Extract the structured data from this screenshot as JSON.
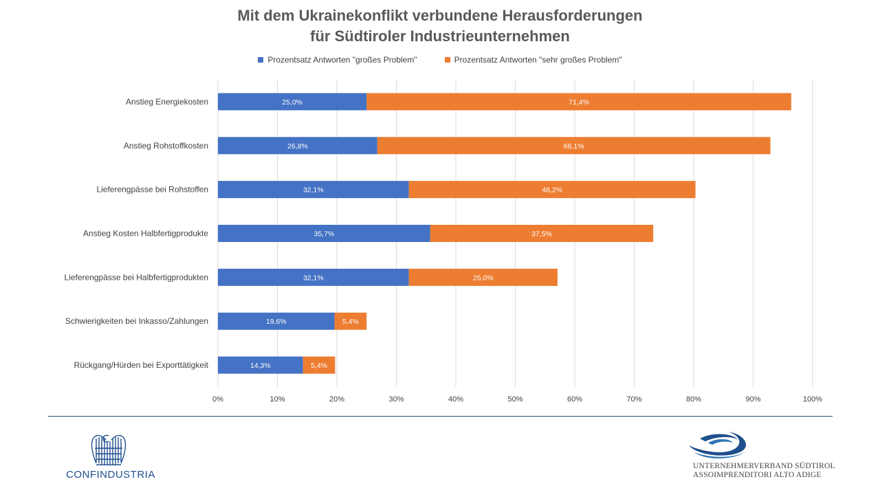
{
  "chart_data": {
    "type": "bar",
    "orientation": "horizontal",
    "stacked": true,
    "title_lines": [
      "Mit dem Ukrainekonflikt verbundene Herausforderungen",
      "für Südtiroler Industrieunternehmen"
    ],
    "categories": [
      "Anstieg Energiekosten",
      "Anstieg Rohstoffkosten",
      "Lieferengpässe bei Rohstoffen",
      "Anstieg Kosten Halbfertigprodukte",
      "Lieferengpässe bei Halbfertigprodukten",
      "Schwierigkeiten bei Inkasso/Zahlungen",
      "Rückgang/Hürden bei Exporttätigkeit"
    ],
    "series": [
      {
        "name": "Prozentsatz Antworten \"großes Problem\"",
        "color": "#4472c4",
        "values": [
          25.0,
          26.8,
          32.1,
          35.7,
          32.1,
          19.6,
          14.3
        ],
        "labels": [
          "25,0%",
          "26,8%",
          "32,1%",
          "35,7%",
          "32,1%",
          "19,6%",
          "14,3%"
        ]
      },
      {
        "name": "Prozentsatz Antworten \"sehr großes Problem\"",
        "color": "#ed7d31",
        "values": [
          71.4,
          66.1,
          48.2,
          37.5,
          25.0,
          5.4,
          5.4
        ],
        "labels": [
          "71,4%",
          "66,1%",
          "48,2%",
          "37,5%",
          "25,0%",
          "5,4%",
          "5,4%"
        ]
      }
    ],
    "x_ticks": [
      "0%",
      "10%",
      "20%",
      "30%",
      "40%",
      "50%",
      "60%",
      "70%",
      "80%",
      "90%",
      "100%"
    ],
    "xlim": [
      0,
      100
    ],
    "grid": true,
    "legend_position": "top"
  },
  "footer": {
    "logo_left_text": "CONFINDUSTRIA",
    "logo_right_line1": "UNTERNEHMERVERBAND SÜDTIROL",
    "logo_right_line2": "ASSOIMPRENDITORI ALTO ADIGE"
  }
}
